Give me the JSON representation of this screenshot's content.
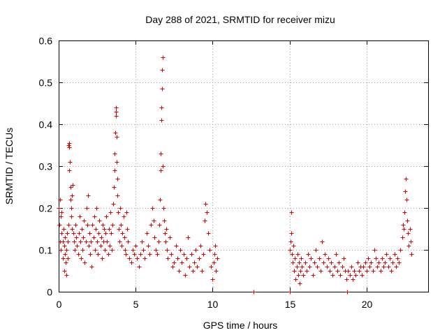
{
  "chart_data": {
    "type": "scatter",
    "title": "Day 288 of 2021, SRMTID for receiver mizu",
    "xlabel": "GPS time / hours",
    "ylabel": "SRMTID / TECUs",
    "xlim": [
      0,
      24
    ],
    "ylim": [
      0,
      0.6
    ],
    "xticks": [
      0,
      5,
      10,
      15,
      20
    ],
    "xtick_labels": [
      "0",
      "5",
      "10",
      "15",
      "20"
    ],
    "yticks": [
      0,
      0.1,
      0.2,
      0.3,
      0.4,
      0.5,
      0.6
    ],
    "ytick_labels": [
      "0",
      "0.1",
      "0.2",
      "0.3",
      "0.4",
      "0.5",
      "0.6"
    ],
    "grid": true,
    "marker": "plus",
    "color": "#e00000",
    "series": [
      {
        "name": "SRMTID",
        "points": [
          [
            0.0,
            0.2
          ],
          [
            0.05,
            0.16
          ],
          [
            0.08,
            0.12
          ],
          [
            0.1,
            0.22
          ],
          [
            0.12,
            0.18
          ],
          [
            0.15,
            0.1
          ],
          [
            0.18,
            0.14
          ],
          [
            0.2,
            0.19
          ],
          [
            0.25,
            0.08
          ],
          [
            0.28,
            0.12
          ],
          [
            0.3,
            0.15
          ],
          [
            0.35,
            0.11
          ],
          [
            0.38,
            0.05
          ],
          [
            0.4,
            0.09
          ],
          [
            0.42,
            0.13
          ],
          [
            0.45,
            0.07
          ],
          [
            0.5,
            0.04
          ],
          [
            0.52,
            0.1
          ],
          [
            0.55,
            0.14
          ],
          [
            0.58,
            0.08
          ],
          [
            0.6,
            0.12
          ],
          [
            0.62,
            0.16
          ],
          [
            0.65,
            0.35
          ],
          [
            0.67,
            0.355
          ],
          [
            0.68,
            0.345
          ],
          [
            0.7,
            0.29
          ],
          [
            0.72,
            0.31
          ],
          [
            0.75,
            0.25
          ],
          [
            0.78,
            0.22
          ],
          [
            0.8,
            0.18
          ],
          [
            0.82,
            0.2
          ],
          [
            0.85,
            0.15
          ],
          [
            0.88,
            0.23
          ],
          [
            0.9,
            0.255
          ],
          [
            0.95,
            0.14
          ],
          [
            1.0,
            0.12
          ],
          [
            1.05,
            0.1
          ],
          [
            1.1,
            0.16
          ],
          [
            1.15,
            0.13
          ],
          [
            1.2,
            0.11
          ],
          [
            1.25,
            0.09
          ],
          [
            1.3,
            0.14
          ],
          [
            1.35,
            0.18
          ],
          [
            1.4,
            0.12
          ],
          [
            1.45,
            0.08
          ],
          [
            1.5,
            0.15
          ],
          [
            1.55,
            0.1
          ],
          [
            1.6,
            0.13
          ],
          [
            1.65,
            0.17
          ],
          [
            1.7,
            0.07
          ],
          [
            1.75,
            0.12
          ],
          [
            1.8,
            0.2
          ],
          [
            1.85,
            0.16
          ],
          [
            1.9,
            0.23
          ],
          [
            1.95,
            0.11
          ],
          [
            2.0,
            0.14
          ],
          [
            2.05,
            0.09
          ],
          [
            2.1,
            0.12
          ],
          [
            2.15,
            0.06
          ],
          [
            2.2,
            0.16
          ],
          [
            2.25,
            0.13
          ],
          [
            2.3,
            0.18
          ],
          [
            2.35,
            0.1
          ],
          [
            2.4,
            0.15
          ],
          [
            2.45,
            0.2
          ],
          [
            2.5,
            0.12
          ],
          [
            2.55,
            0.09
          ],
          [
            2.6,
            0.14
          ],
          [
            2.65,
            0.17
          ],
          [
            2.7,
            0.11
          ],
          [
            2.75,
            0.13
          ],
          [
            2.8,
            0.08
          ],
          [
            2.85,
            0.16
          ],
          [
            2.9,
            0.12
          ],
          [
            2.95,
            0.15
          ],
          [
            3.0,
            0.1
          ],
          [
            3.05,
            0.14
          ],
          [
            3.1,
            0.18
          ],
          [
            3.15,
            0.12
          ],
          [
            3.2,
            0.09
          ],
          [
            3.25,
            0.15
          ],
          [
            3.3,
            0.11
          ],
          [
            3.35,
            0.19
          ],
          [
            3.4,
            0.14
          ],
          [
            3.45,
            0.1
          ],
          [
            3.5,
            0.16
          ],
          [
            3.55,
            0.21
          ],
          [
            3.6,
            0.25
          ],
          [
            3.63,
            0.29
          ],
          [
            3.65,
            0.33
          ],
          [
            3.67,
            0.38
          ],
          [
            3.7,
            0.42
          ],
          [
            3.72,
            0.44
          ],
          [
            3.74,
            0.43
          ],
          [
            3.76,
            0.37
          ],
          [
            3.78,
            0.31
          ],
          [
            3.8,
            0.27
          ],
          [
            3.82,
            0.23
          ],
          [
            3.85,
            0.19
          ],
          [
            3.9,
            0.15
          ],
          [
            3.95,
            0.12
          ],
          [
            4.0,
            0.2
          ],
          [
            4.05,
            0.16
          ],
          [
            4.1,
            0.11
          ],
          [
            4.15,
            0.14
          ],
          [
            4.2,
            0.18
          ],
          [
            4.25,
            0.13
          ],
          [
            4.3,
            0.1
          ],
          [
            4.35,
            0.09
          ],
          [
            4.4,
            0.19
          ],
          [
            4.45,
            0.15
          ],
          [
            4.5,
            0.12
          ],
          [
            4.6,
            0.08
          ],
          [
            4.7,
            0.07
          ],
          [
            4.8,
            0.1
          ],
          [
            4.9,
            0.09
          ],
          [
            5.0,
            0.11
          ],
          [
            5.1,
            0.08
          ],
          [
            5.2,
            0.06
          ],
          [
            5.3,
            0.09
          ],
          [
            5.4,
            0.12
          ],
          [
            5.5,
            0.1
          ],
          [
            5.6,
            0.08
          ],
          [
            5.7,
            0.14
          ],
          [
            5.8,
            0.11
          ],
          [
            5.9,
            0.09
          ],
          [
            6.0,
            0.16
          ],
          [
            6.1,
            0.2
          ],
          [
            6.15,
            0.17
          ],
          [
            6.2,
            0.13
          ],
          [
            6.3,
            0.1
          ],
          [
            6.4,
            0.09
          ],
          [
            6.5,
            0.12
          ],
          [
            6.55,
            0.16
          ],
          [
            6.6,
            0.22
          ],
          [
            6.62,
            0.29
          ],
          [
            6.64,
            0.33
          ],
          [
            6.66,
            0.41
          ],
          [
            6.68,
            0.44
          ],
          [
            6.7,
            0.485
          ],
          [
            6.72,
            0.53
          ],
          [
            6.74,
            0.56
          ],
          [
            6.76,
            0.3
          ],
          [
            6.8,
            0.2
          ],
          [
            6.85,
            0.17
          ],
          [
            6.9,
            0.14
          ],
          [
            6.95,
            0.12
          ],
          [
            7.0,
            0.15
          ],
          [
            7.05,
            0.1
          ],
          [
            7.1,
            0.08
          ],
          [
            7.2,
            0.13
          ],
          [
            7.3,
            0.09
          ],
          [
            7.4,
            0.06
          ],
          [
            7.5,
            0.07
          ],
          [
            7.6,
            0.11
          ],
          [
            7.7,
            0.08
          ],
          [
            7.8,
            0.05
          ],
          [
            7.9,
            0.1
          ],
          [
            8.0,
            0.07
          ],
          [
            8.1,
            0.09
          ],
          [
            8.2,
            0.04
          ],
          [
            8.3,
            0.08
          ],
          [
            8.4,
            0.13
          ],
          [
            8.5,
            0.06
          ],
          [
            8.6,
            0.09
          ],
          [
            8.7,
            0.05
          ],
          [
            8.8,
            0.07
          ],
          [
            8.9,
            0.1
          ],
          [
            9.0,
            0.06
          ],
          [
            9.1,
            0.08
          ],
          [
            9.2,
            0.11
          ],
          [
            9.3,
            0.05
          ],
          [
            9.4,
            0.09
          ],
          [
            9.5,
            0.17
          ],
          [
            9.55,
            0.21
          ],
          [
            9.6,
            0.19
          ],
          [
            9.7,
            0.14
          ],
          [
            9.8,
            0.1
          ],
          [
            9.9,
            0.06
          ],
          [
            10.0,
            0.03
          ],
          [
            10.05,
            0.07
          ],
          [
            10.1,
            0.09
          ],
          [
            10.15,
            0.11
          ],
          [
            10.2,
            0.05
          ],
          [
            10.3,
            0.08
          ],
          [
            12.65,
            0.0
          ],
          [
            15.0,
            0.0
          ],
          [
            18.75,
            0.0
          ],
          [
            15.0,
            0.1
          ],
          [
            15.05,
            0.12
          ],
          [
            15.1,
            0.19
          ],
          [
            15.12,
            0.14
          ],
          [
            15.15,
            0.09
          ],
          [
            15.2,
            0.07
          ],
          [
            15.25,
            0.11
          ],
          [
            15.3,
            0.05
          ],
          [
            15.35,
            0.08
          ],
          [
            15.4,
            0.03
          ],
          [
            15.45,
            0.06
          ],
          [
            15.5,
            0.09
          ],
          [
            15.55,
            0.04
          ],
          [
            15.6,
            0.07
          ],
          [
            15.65,
            0.02
          ],
          [
            15.7,
            0.05
          ],
          [
            15.75,
            0.08
          ],
          [
            15.8,
            0.06
          ],
          [
            15.9,
            0.04
          ],
          [
            16.0,
            0.07
          ],
          [
            16.1,
            0.05
          ],
          [
            16.2,
            0.09
          ],
          [
            16.3,
            0.06
          ],
          [
            16.4,
            0.08
          ],
          [
            16.5,
            0.04
          ],
          [
            16.6,
            0.07
          ],
          [
            16.7,
            0.1
          ],
          [
            16.8,
            0.06
          ],
          [
            16.9,
            0.08
          ],
          [
            17.0,
            0.05
          ],
          [
            17.1,
            0.12
          ],
          [
            17.2,
            0.07
          ],
          [
            17.3,
            0.09
          ],
          [
            17.4,
            0.06
          ],
          [
            17.5,
            0.08
          ],
          [
            17.6,
            0.05
          ],
          [
            17.7,
            0.07
          ],
          [
            17.8,
            0.04
          ],
          [
            17.9,
            0.06
          ],
          [
            18.0,
            0.09
          ],
          [
            18.1,
            0.05
          ],
          [
            18.2,
            0.07
          ],
          [
            18.3,
            0.04
          ],
          [
            18.4,
            0.06
          ],
          [
            18.5,
            0.08
          ],
          [
            18.6,
            0.05
          ],
          [
            18.7,
            0.03
          ],
          [
            18.8,
            0.05
          ],
          [
            18.9,
            0.04
          ],
          [
            19.0,
            0.06
          ],
          [
            19.1,
            0.03
          ],
          [
            19.2,
            0.05
          ],
          [
            19.3,
            0.04
          ],
          [
            19.4,
            0.07
          ],
          [
            19.5,
            0.05
          ],
          [
            19.6,
            0.06
          ],
          [
            19.7,
            0.04
          ],
          [
            19.8,
            0.06
          ],
          [
            19.9,
            0.07
          ],
          [
            20.0,
            0.05
          ],
          [
            20.1,
            0.08
          ],
          [
            20.2,
            0.06
          ],
          [
            20.3,
            0.07
          ],
          [
            20.4,
            0.05
          ],
          [
            20.5,
            0.1
          ],
          [
            20.6,
            0.08
          ],
          [
            20.7,
            0.06
          ],
          [
            20.8,
            0.07
          ],
          [
            20.9,
            0.05
          ],
          [
            21.0,
            0.08
          ],
          [
            21.1,
            0.06
          ],
          [
            21.2,
            0.07
          ],
          [
            21.3,
            0.09
          ],
          [
            21.4,
            0.06
          ],
          [
            21.5,
            0.08
          ],
          [
            21.6,
            0.05
          ],
          [
            21.7,
            0.07
          ],
          [
            21.8,
            0.09
          ],
          [
            21.9,
            0.06
          ],
          [
            22.0,
            0.08
          ],
          [
            22.1,
            0.07
          ],
          [
            22.2,
            0.1
          ],
          [
            22.3,
            0.13
          ],
          [
            22.35,
            0.16
          ],
          [
            22.4,
            0.15
          ],
          [
            22.45,
            0.19
          ],
          [
            22.5,
            0.24
          ],
          [
            22.55,
            0.27
          ],
          [
            22.6,
            0.22
          ],
          [
            22.65,
            0.17
          ],
          [
            22.7,
            0.14
          ],
          [
            22.75,
            0.11
          ],
          [
            22.8,
            0.15
          ],
          [
            22.85,
            0.12
          ],
          [
            22.9,
            0.09
          ]
        ]
      }
    ]
  }
}
